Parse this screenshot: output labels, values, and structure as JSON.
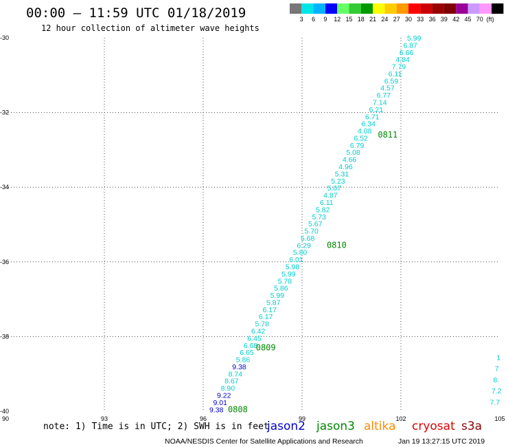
{
  "header": {
    "title": "00:00 – 11:59 UTC 01/18/2019",
    "subtitle": "12 hour collection of altimeter wave heights"
  },
  "colorbar": {
    "colors": [
      "#777777",
      "#00e5e5",
      "#00b3ff",
      "#0000ff",
      "#66ff66",
      "#33cc33",
      "#009900",
      "#ffff00",
      "#ffcc00",
      "#ff9900",
      "#ff0000",
      "#cc0000",
      "#990000",
      "#800000",
      "#990099",
      "#cc99ff",
      "#ff99ff",
      "#000000"
    ],
    "labels": [
      "3",
      "6",
      "9",
      "12",
      "15",
      "18",
      "21",
      "24",
      "27",
      "30",
      "33",
      "36",
      "39",
      "42",
      "45",
      "70"
    ],
    "unit": "(ft)"
  },
  "footer": {
    "note": "note: 1) Time is in UTC; 2) SWH is in feet",
    "credit": "NOAA/NESDIS Center for Satellite Applications and Research",
    "timestamp": "Jan 19 13:27:15 UTC 2019"
  },
  "chart_data": {
    "type": "scatter",
    "title": "00:00 – 11:59 UTC 01/18/2019",
    "subtitle": "12 hour collection of altimeter wave heights",
    "xlim": [
      90,
      105
    ],
    "ylim": [
      -40,
      -30
    ],
    "x_ticks": [
      "90",
      "93",
      "96",
      "99",
      "102",
      "105"
    ],
    "y_ticks": [
      "-30",
      "-32",
      "-34",
      "-36",
      "-38",
      "-40"
    ],
    "grid": true,
    "legend": [
      {
        "name": "jason2",
        "color": "#0000cc"
      },
      {
        "name": "jason3",
        "color": "#008800"
      },
      {
        "name": "altika",
        "color": "#ff8800"
      },
      {
        "name": "cryosat",
        "color": "#dd0000"
      },
      {
        "name": "s3a",
        "color": "#880000"
      }
    ],
    "track": {
      "start": [
        96.4,
        -39.95
      ],
      "end": [
        102.4,
        -30.0
      ],
      "values": [
        "9.38",
        "9.01",
        "9.22",
        "8.90",
        "8.67",
        "8.74",
        "9.38",
        "5.86",
        "6.65",
        "6.68",
        "6.45",
        "6.42",
        "5.78",
        "6.17",
        "6.17",
        "5.87",
        "5.99",
        "5.86",
        "5.78",
        "5.99",
        "5.98",
        "6.01",
        "5.80",
        "6.29",
        "5.68",
        "5.70",
        "5.67",
        "5.73",
        "5.82",
        "6.11",
        "4.87",
        "5.07",
        "5.23",
        "5.31",
        "4.96",
        "4.66",
        "5.08",
        "6.79",
        "6.52",
        "4.08",
        "6.34",
        "6.71",
        "6.21",
        "7.14",
        "6.77",
        "4.57",
        "6.59",
        "6.11",
        "7.79",
        "4.84",
        "6.66",
        "6.87",
        "5.99"
      ],
      "colors": [
        "#0000cc",
        "#0000cc",
        "#0000cc",
        "#00cccc",
        "#00cccc",
        "#00cccc",
        "#0000cc",
        "#00cccc",
        "#00cccc",
        "#00cccc",
        "#00cccc",
        "#00cccc",
        "#00cccc",
        "#00cccc",
        "#00cccc",
        "#00cccc",
        "#00cccc",
        "#00cccc",
        "#00cccc",
        "#00cccc",
        "#00cccc",
        "#00cccc",
        "#00cccc",
        "#00cccc",
        "#00cccc",
        "#00cccc",
        "#00cccc",
        "#00cccc",
        "#00cccc",
        "#00cccc",
        "#00cccc",
        "#00cccc",
        "#00cccc",
        "#00cccc",
        "#00cccc",
        "#00cccc",
        "#00cccc",
        "#00cccc",
        "#00cccc",
        "#00cccc",
        "#00cccc",
        "#00cccc",
        "#00cccc",
        "#00cccc",
        "#00cccc",
        "#00cccc",
        "#00cccc",
        "#00cccc",
        "#00cccc",
        "#00cccc",
        "#00cccc",
        "#00cccc",
        "#00cccc"
      ]
    },
    "time_labels": [
      {
        "text": "0808",
        "x": 97.05,
        "y": -39.95,
        "color": "#008800"
      },
      {
        "text": "0809",
        "x": 97.9,
        "y": -38.3,
        "color": "#008800"
      },
      {
        "text": "0810",
        "x": 100.05,
        "y": -35.55,
        "color": "#008800"
      },
      {
        "text": "0811",
        "x": 101.6,
        "y": -32.6,
        "color": "#008800"
      }
    ],
    "partial_values": [
      {
        "text": "7.7",
        "x": 104.7,
        "y": -39.75
      },
      {
        "text": "7.2",
        "x": 104.75,
        "y": -39.45
      },
      {
        "text": "8.",
        "x": 104.8,
        "y": -39.15
      },
      {
        "text": "7",
        "x": 104.85,
        "y": -38.85
      },
      {
        "text": "1",
        "x": 104.9,
        "y": -38.55
      }
    ]
  }
}
